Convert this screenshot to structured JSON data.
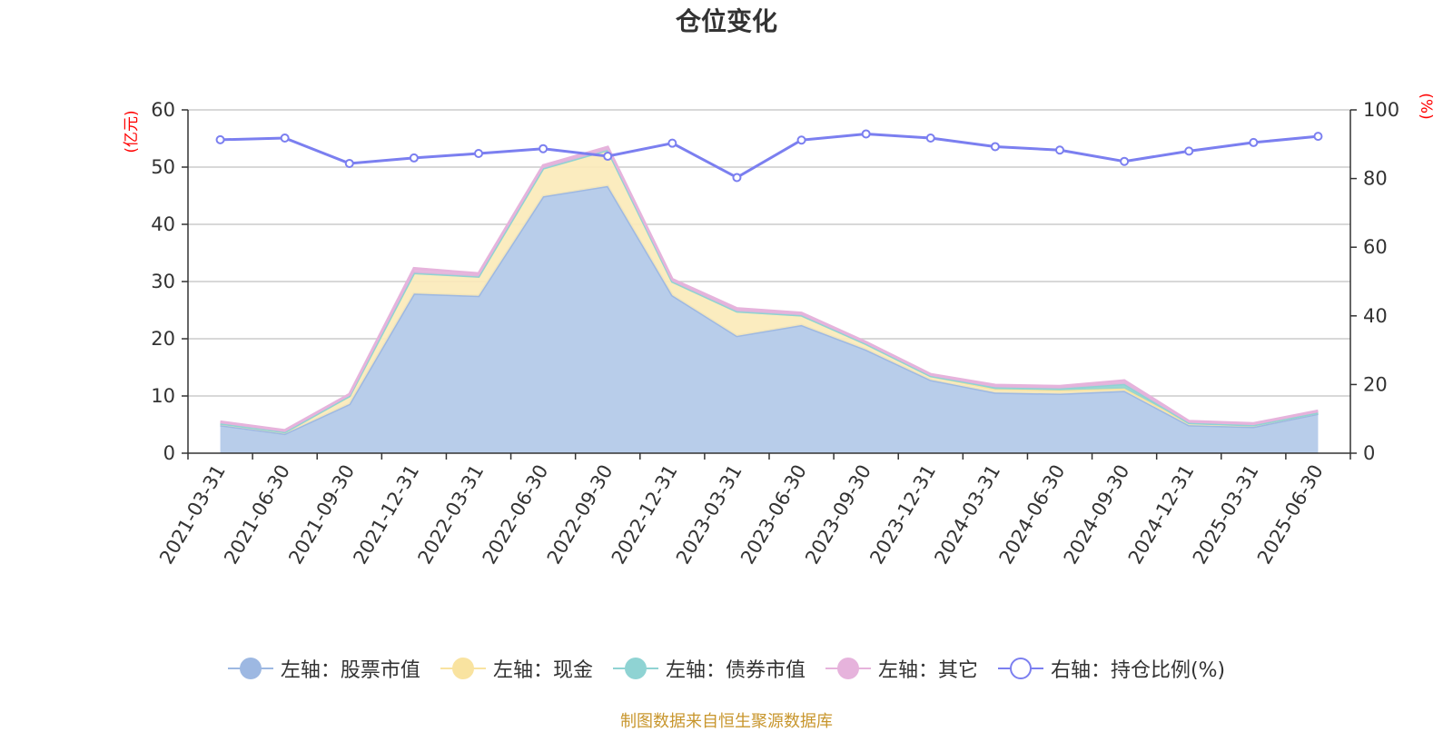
{
  "title": "仓位变化",
  "source_note": "制图数据来自恒生聚源数据库",
  "colors": {
    "stock": "#9db8e2",
    "stock_fill": "#b8cdea",
    "cash": "#f9e3a0",
    "cash_fill": "#fbeab8",
    "bond": "#8fd3d3",
    "other": "#e6b3dc",
    "ratio": "#7b7ff0",
    "unit": "#ff0000"
  },
  "chart_data": {
    "type": "area",
    "title": "仓位变化",
    "x": [
      "2021-03-31",
      "2021-06-30",
      "2021-09-30",
      "2021-12-31",
      "2022-03-31",
      "2022-06-30",
      "2022-09-30",
      "2022-12-31",
      "2023-03-31",
      "2023-06-30",
      "2023-09-30",
      "2023-12-31",
      "2024-03-31",
      "2024-06-30",
      "2024-09-30",
      "2024-12-31",
      "2025-03-31",
      "2025-06-30"
    ],
    "left_axis": {
      "unit": "(亿元)",
      "ylim": [
        0,
        60
      ],
      "ticks": [
        "0",
        "10",
        "20",
        "30",
        "40",
        "50",
        "60"
      ]
    },
    "right_axis": {
      "unit": "(%)",
      "ylim": [
        0,
        100
      ],
      "ticks": [
        "0",
        "20",
        "40",
        "60",
        "80",
        "100"
      ]
    },
    "grid": true,
    "legend_position": "bottom",
    "series": [
      {
        "name": "左轴：股票市值",
        "axis": "left",
        "stacked": true,
        "values": [
          4.9,
          3.4,
          8.6,
          27.9,
          27.5,
          44.9,
          46.7,
          27.6,
          20.5,
          22.4,
          18.1,
          12.8,
          10.6,
          10.4,
          10.9,
          4.9,
          4.6,
          6.9
        ]
      },
      {
        "name": "左轴：现金",
        "axis": "left",
        "stacked": true,
        "values": [
          0.3,
          0.3,
          1.4,
          3.6,
          3.4,
          4.9,
          6.3,
          2.4,
          4.3,
          1.7,
          1.0,
          0.7,
          0.6,
          0.6,
          0.4,
          0.4,
          0.3,
          0.2
        ]
      },
      {
        "name": "左轴：债券市值",
        "axis": "left",
        "stacked": true,
        "values": [
          0,
          0,
          0,
          0,
          0,
          0,
          0,
          0,
          0,
          0,
          0,
          0,
          0.3,
          0.3,
          0.8,
          0,
          0,
          0
        ]
      },
      {
        "name": "左轴：其它",
        "axis": "left",
        "stacked": true,
        "values": [
          0.3,
          0.3,
          0.3,
          0.8,
          0.5,
          0.5,
          0.5,
          0.4,
          0.5,
          0.4,
          0.3,
          0.3,
          0.4,
          0.4,
          0.6,
          0.3,
          0.3,
          0.3
        ]
      },
      {
        "name": "右轴：持仓比例(%)",
        "axis": "right",
        "stacked": false,
        "values": [
          91.3,
          91.8,
          84.4,
          86.0,
          87.3,
          88.7,
          86.5,
          90.3,
          80.3,
          91.2,
          93.0,
          91.8,
          89.3,
          88.3,
          85.0,
          88.0,
          90.5,
          92.3
        ]
      }
    ]
  }
}
